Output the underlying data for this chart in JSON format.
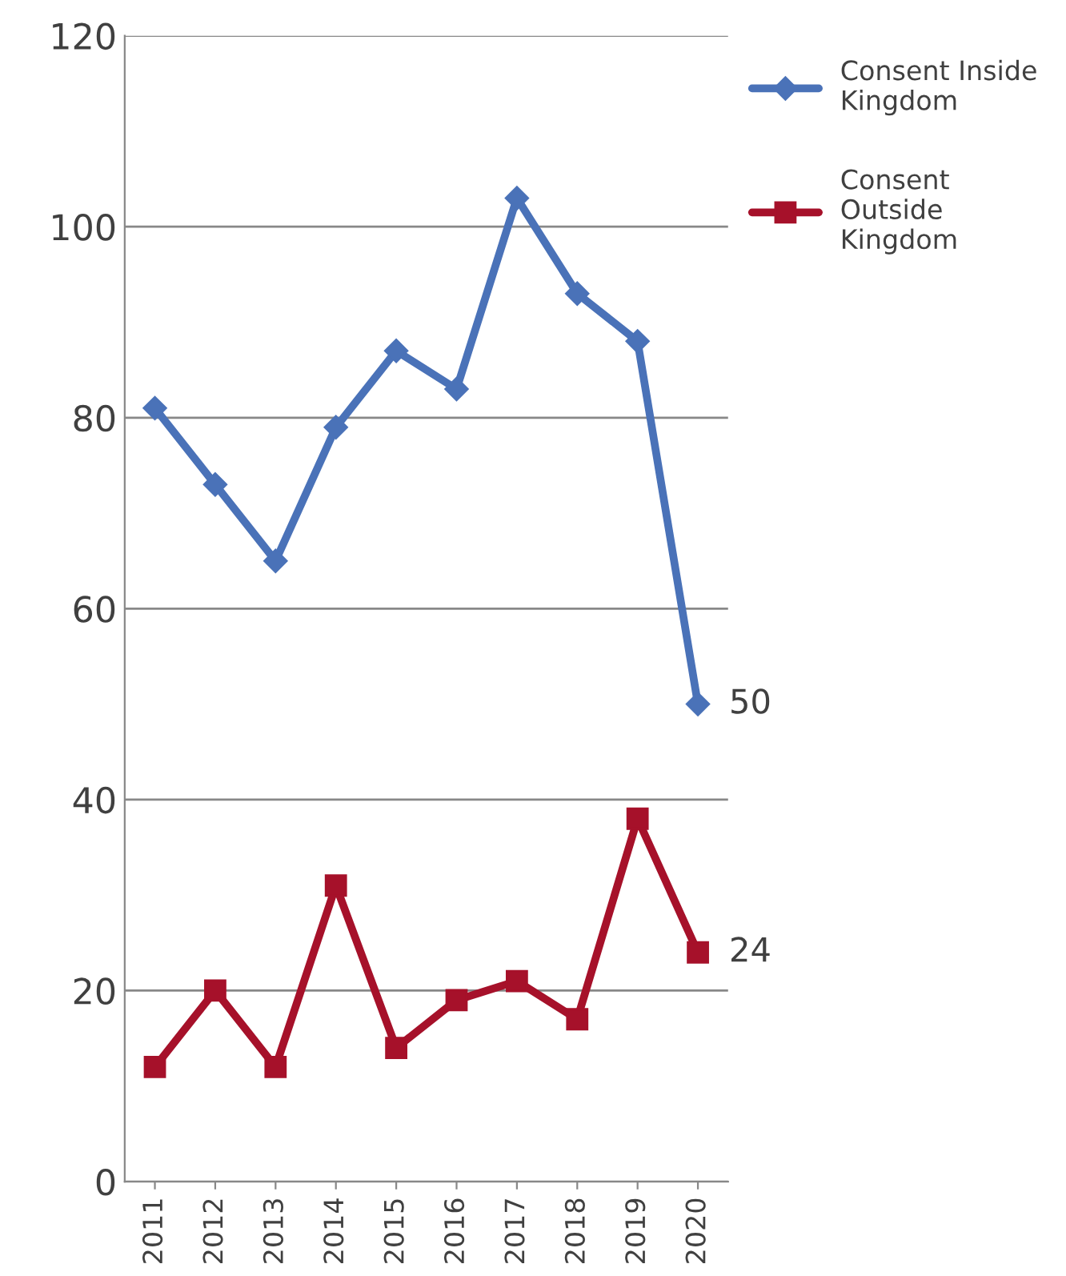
{
  "chart_data": {
    "type": "line",
    "categories": [
      "2011",
      "2012",
      "2013",
      "2014",
      "2015",
      "2016",
      "2017",
      "2018",
      "2019",
      "2020"
    ],
    "series": [
      {
        "name": "Consent Inside Kingdom",
        "color": "#4a72b8",
        "marker": "diamond",
        "values": [
          81,
          73,
          65,
          79,
          87,
          83,
          103,
          93,
          88,
          50
        ],
        "value_labels": [
          null,
          null,
          null,
          null,
          null,
          null,
          null,
          null,
          null,
          "50"
        ]
      },
      {
        "name": "Consent Outside Kingdom",
        "color": "#a6112a",
        "marker": "square",
        "values": [
          12,
          20,
          12,
          31,
          14,
          19,
          21,
          17,
          38,
          24
        ],
        "value_labels": [
          null,
          null,
          null,
          null,
          null,
          null,
          null,
          null,
          null,
          "24"
        ]
      }
    ],
    "ylim": [
      0,
      120
    ],
    "yticks": [
      0,
      20,
      40,
      60,
      80,
      100,
      120
    ],
    "grid": "y",
    "legend": "top right",
    "line_style": "solid"
  }
}
